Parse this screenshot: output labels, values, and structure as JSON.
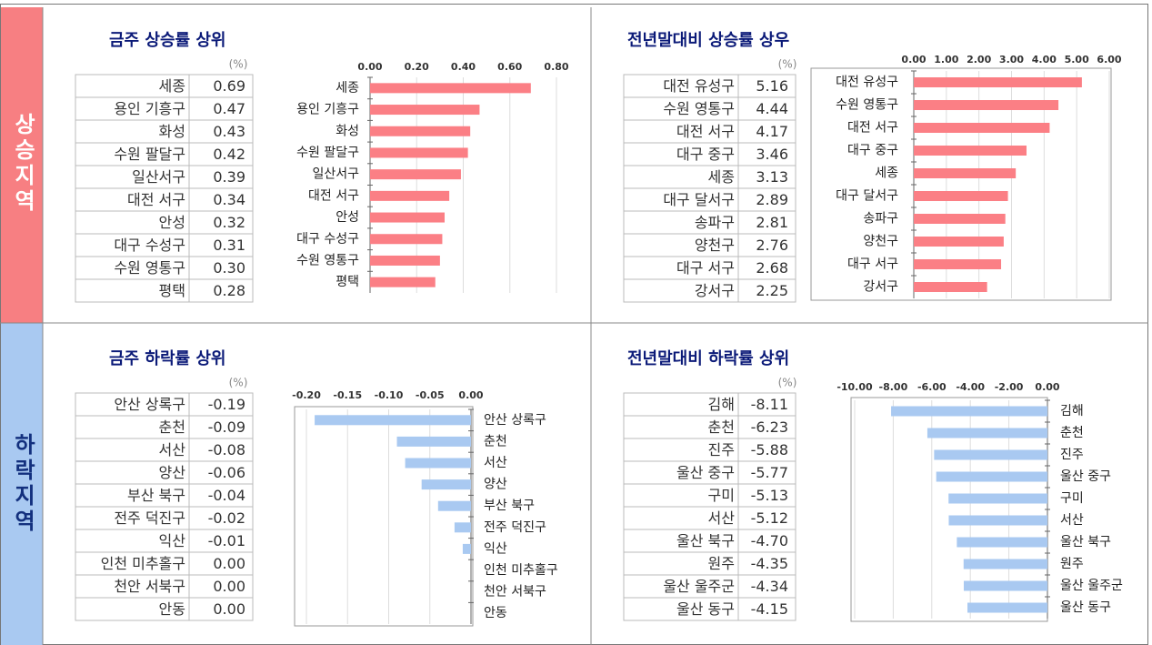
{
  "regions": [
    "상승지역",
    "하락지역"
  ],
  "chart_data": [
    {
      "type": "bar",
      "title": "금주 상승률 상위",
      "unit": "(%)",
      "color": "#fb7f85",
      "categories": [
        "세종",
        "용인 기흥구",
        "화성",
        "수원 팔달구",
        "일산서구",
        "대전 서구",
        "안성",
        "대구 수성구",
        "수원 영통구",
        "평택"
      ],
      "values": [
        0.69,
        0.47,
        0.43,
        0.42,
        0.39,
        0.34,
        0.32,
        0.31,
        0.3,
        0.28
      ],
      "value_labels": [
        "0.69",
        "0.47",
        "0.43",
        "0.42",
        "0.39",
        "0.34",
        "0.32",
        "0.31",
        "0.30",
        "0.28"
      ],
      "xlim": [
        0,
        0.8
      ],
      "xticks": [
        {
          "value": 0,
          "label": "0.00"
        },
        {
          "value": 0.2,
          "label": "0.20"
        },
        {
          "value": 0.4,
          "label": "0.40"
        },
        {
          "value": 0.6,
          "label": "0.60"
        },
        {
          "value": 0.8,
          "label": "0.80"
        }
      ],
      "grid": true
    },
    {
      "type": "bar",
      "title": "전년말대비 상승률 상우",
      "unit": "(%)",
      "color": "#fb7f85",
      "categories": [
        "대전 유성구",
        "수원 영통구",
        "대전 서구",
        "대구 중구",
        "세종",
        "대구 달서구",
        "송파구",
        "양천구",
        "대구 서구",
        "강서구"
      ],
      "values": [
        5.16,
        4.44,
        4.17,
        3.46,
        3.13,
        2.89,
        2.81,
        2.76,
        2.68,
        2.25
      ],
      "value_labels": [
        "5.16",
        "4.44",
        "4.17",
        "3.46",
        "3.13",
        "2.89",
        "2.81",
        "2.76",
        "2.68",
        "2.25"
      ],
      "xlim": [
        0,
        6
      ],
      "xticks": [
        {
          "value": 0,
          "label": "0.00"
        },
        {
          "value": 1,
          "label": "1.00"
        },
        {
          "value": 2,
          "label": "2.00"
        },
        {
          "value": 3,
          "label": "3.00"
        },
        {
          "value": 4,
          "label": "4.00"
        },
        {
          "value": 5,
          "label": "5.00"
        },
        {
          "value": 6,
          "label": "6.00"
        }
      ],
      "grid": true
    },
    {
      "type": "bar",
      "title": "금주 하락률 상위",
      "unit": "(%)",
      "color": "#a9c9f1",
      "categories": [
        "안산 상록구",
        "춘천",
        "서산",
        "양산",
        "부산 북구",
        "전주 덕진구",
        "익산",
        "인천 미추홀구",
        "천안 서북구",
        "안동"
      ],
      "values": [
        -0.19,
        -0.09,
        -0.08,
        -0.06,
        -0.04,
        -0.02,
        -0.01,
        0,
        0,
        0
      ],
      "value_labels": [
        "-0.19",
        "-0.09",
        "-0.08",
        "-0.06",
        "-0.04",
        "-0.02",
        "-0.01",
        "0.00",
        "0.00",
        "0.00"
      ],
      "xlim": [
        -0.2,
        0
      ],
      "xticks": [
        {
          "value": -0.2,
          "label": "-0.20"
        },
        {
          "value": -0.15,
          "label": "-0.15"
        },
        {
          "value": -0.1,
          "label": "-0.10"
        },
        {
          "value": -0.05,
          "label": "-0.05"
        },
        {
          "value": 0,
          "label": "0.00"
        }
      ],
      "grid": true
    },
    {
      "type": "bar",
      "title": "전년말대비 하락률 상위",
      "unit": "(%)",
      "color": "#a9c9f1",
      "categories": [
        "김해",
        "춘천",
        "진주",
        "울산 중구",
        "구미",
        "서산",
        "울산 북구",
        "원주",
        "울산 울주군",
        "울산 동구"
      ],
      "values": [
        -8.11,
        -6.23,
        -5.88,
        -5.77,
        -5.13,
        -5.12,
        -4.7,
        -4.35,
        -4.34,
        -4.15
      ],
      "value_labels": [
        "-8.11",
        "-6.23",
        "-5.88",
        "-5.77",
        "-5.13",
        "-5.12",
        "-4.70",
        "-4.35",
        "-4.34",
        "-4.15"
      ],
      "xlim": [
        -10,
        0
      ],
      "xticks": [
        {
          "value": -10,
          "label": "-10.00"
        },
        {
          "value": -8,
          "label": "-8.00"
        },
        {
          "value": -6,
          "label": "-6.00"
        },
        {
          "value": -4,
          "label": "-4.00"
        },
        {
          "value": -2,
          "label": "-2.00"
        },
        {
          "value": 0,
          "label": "0.00"
        }
      ],
      "grid": true
    }
  ]
}
